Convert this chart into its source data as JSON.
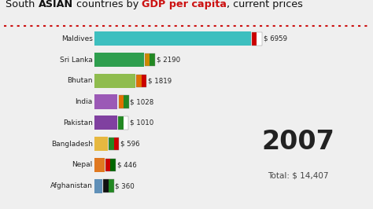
{
  "countries": [
    "Maldives",
    "Sri Lanka",
    "Bhutan",
    "India",
    "Pakistan",
    "Bangladesh",
    "Nepal",
    "Afghanistan"
  ],
  "values": [
    6959,
    2190,
    1819,
    1028,
    1010,
    596,
    446,
    360
  ],
  "bar_colors": [
    "#3dbfbf",
    "#2e9e4e",
    "#8fbc4e",
    "#9b59b6",
    "#8040a0",
    "#e6b840",
    "#e07820",
    "#6090b8"
  ],
  "value_labels": [
    "$ 6959",
    "$ 2190",
    "$ 1819",
    "$ 1028",
    "$ 1010",
    "$ 596",
    "$ 446",
    "$ 360"
  ],
  "flag_colors": [
    [
      "#cc0000",
      "#ffffff"
    ],
    [
      "#cc8800",
      "#228822"
    ],
    [
      "#e07000",
      "#cc0000"
    ],
    [
      "#e07000",
      "#228822"
    ],
    [
      "#228822",
      "#ffffff"
    ],
    [
      "#228822",
      "#cc0000"
    ],
    [
      "#cc0000",
      "#006600"
    ],
    [
      "#111111",
      "#228822"
    ]
  ],
  "title_segments": [
    [
      "South ",
      false,
      "#111111"
    ],
    [
      "ASIAN",
      true,
      "#111111"
    ],
    [
      " countries by ",
      false,
      "#111111"
    ],
    [
      "GDP per capita",
      true,
      "#cc1111"
    ],
    [
      ", current prices",
      false,
      "#111111"
    ]
  ],
  "year": "2007",
  "total": "Total: $ 14,407",
  "background_color": "#efefef",
  "dot_color": "#cc1111",
  "bar_area_bg": "#e8e8e8"
}
